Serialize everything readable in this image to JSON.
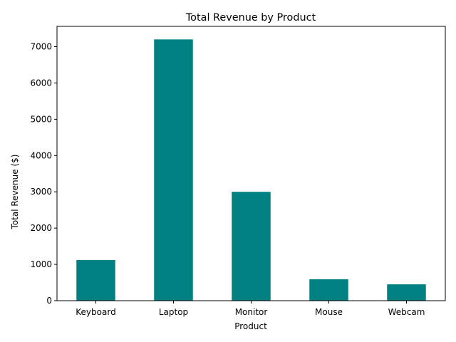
{
  "chart_data": {
    "type": "bar",
    "title": "Total Revenue by Product",
    "xlabel": "Product",
    "ylabel": "Total Revenue ($)",
    "categories": [
      "Keyboard",
      "Laptop",
      "Monitor",
      "Mouse",
      "Webcam"
    ],
    "values": [
      1120,
      7200,
      3000,
      590,
      450
    ],
    "ylim": [
      0,
      7560
    ],
    "yticks": [
      0,
      1000,
      2000,
      3000,
      4000,
      5000,
      6000,
      7000
    ],
    "bar_color": "#008080",
    "grid": false,
    "legend": "none"
  }
}
